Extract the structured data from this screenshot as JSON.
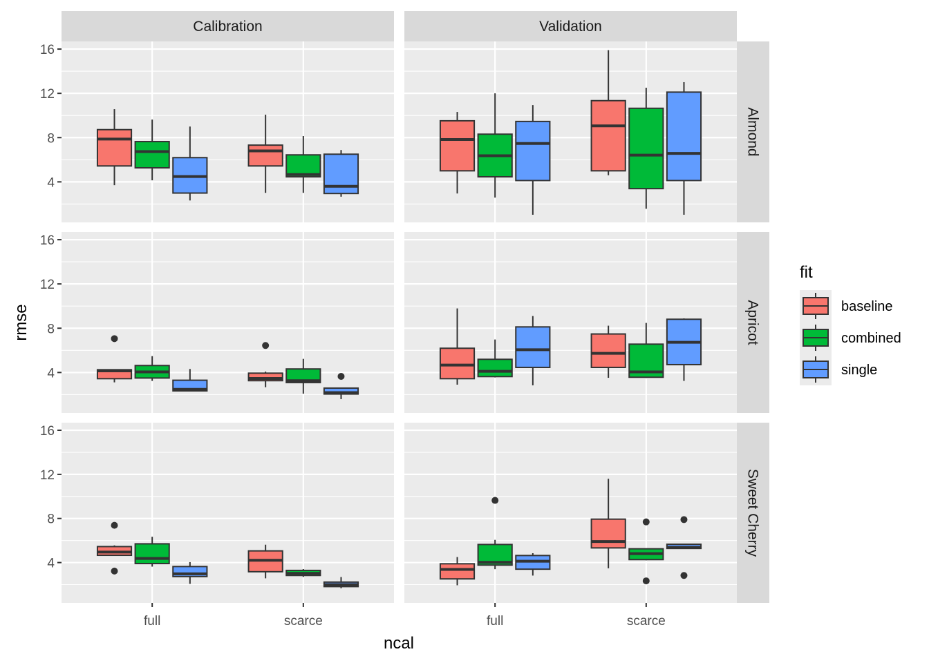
{
  "chart_data": {
    "type": "boxplot",
    "xlabel": "ncal",
    "ylabel": "rmse",
    "ylim": [
      0.34,
      16.69
    ],
    "yticks": [
      4,
      8,
      12,
      16
    ],
    "yminor": [
      2,
      6,
      10,
      14
    ],
    "grid": true,
    "categories": [
      "full",
      "scarce"
    ],
    "facet_cols": [
      "Calibration",
      "Validation"
    ],
    "facet_rows": [
      "Almond",
      "Apricot",
      "Sweet Cherry"
    ],
    "legend": {
      "title": "fit",
      "placement": "right",
      "entries": [
        {
          "name": "baseline",
          "color": "#F8766D"
        },
        {
          "name": "combined",
          "color": "#00BA38"
        },
        {
          "name": "single",
          "color": "#619CFF"
        }
      ]
    },
    "panels": [
      {
        "col": "Calibration",
        "row": "Almond",
        "boxes": [
          {
            "ncal": "full",
            "fit": "baseline",
            "whisker_low": 3.7,
            "q1": 5.44,
            "median": 7.87,
            "q3": 8.72,
            "whisker_high": 10.57,
            "outliers": []
          },
          {
            "ncal": "full",
            "fit": "combined",
            "whisker_low": 4.14,
            "q1": 5.27,
            "median": 6.74,
            "q3": 7.64,
            "whisker_high": 9.63,
            "outliers": []
          },
          {
            "ncal": "full",
            "fit": "single",
            "whisker_low": 2.32,
            "q1": 2.99,
            "median": 4.48,
            "q3": 6.19,
            "whisker_high": 9.0,
            "outliers": []
          },
          {
            "ncal": "scarce",
            "fit": "baseline",
            "whisker_low": 3.01,
            "q1": 5.44,
            "median": 6.8,
            "q3": 7.32,
            "whisker_high": 10.07,
            "outliers": []
          },
          {
            "ncal": "scarce",
            "fit": "combined",
            "whisker_low": 3.01,
            "q1": 4.46,
            "median": 4.66,
            "q3": 6.44,
            "whisker_high": 8.14,
            "outliers": []
          },
          {
            "ncal": "scarce",
            "fit": "single",
            "whisker_low": 2.66,
            "q1": 2.95,
            "median": 3.6,
            "q3": 6.5,
            "whisker_high": 6.88,
            "outliers": []
          }
        ]
      },
      {
        "col": "Validation",
        "row": "Almond",
        "boxes": [
          {
            "ncal": "full",
            "fit": "baseline",
            "whisker_low": 2.95,
            "q1": 5.0,
            "median": 7.83,
            "q3": 9.52,
            "whisker_high": 10.32,
            "outliers": []
          },
          {
            "ncal": "full",
            "fit": "combined",
            "whisker_low": 2.58,
            "q1": 4.46,
            "median": 6.36,
            "q3": 8.31,
            "whisker_high": 12.0,
            "outliers": []
          },
          {
            "ncal": "full",
            "fit": "single",
            "whisker_low": 1.03,
            "q1": 4.12,
            "median": 7.47,
            "q3": 9.46,
            "whisker_high": 10.94,
            "outliers": []
          },
          {
            "ncal": "scarce",
            "fit": "baseline",
            "whisker_low": 4.6,
            "q1": 5.0,
            "median": 9.06,
            "q3": 11.34,
            "whisker_high": 15.9,
            "outliers": []
          },
          {
            "ncal": "scarce",
            "fit": "combined",
            "whisker_low": 1.57,
            "q1": 3.39,
            "median": 6.42,
            "q3": 10.65,
            "whisker_high": 12.51,
            "outliers": []
          },
          {
            "ncal": "scarce",
            "fit": "single",
            "whisker_low": 1.03,
            "q1": 4.12,
            "median": 6.57,
            "q3": 12.11,
            "whisker_high": 13.01,
            "outliers": []
          }
        ]
      },
      {
        "col": "Calibration",
        "row": "Apricot",
        "boxes": [
          {
            "ncal": "full",
            "fit": "baseline",
            "whisker_low": 3.11,
            "q1": 3.44,
            "median": 4.15,
            "q3": 4.25,
            "whisker_high": 4.25,
            "outliers": [
              7.06
            ]
          },
          {
            "ncal": "full",
            "fit": "combined",
            "whisker_low": 3.24,
            "q1": 3.5,
            "median": 4.05,
            "q3": 4.63,
            "whisker_high": 5.48,
            "outliers": []
          },
          {
            "ncal": "full",
            "fit": "single",
            "whisker_low": 2.34,
            "q1": 2.34,
            "median": 2.48,
            "q3": 3.3,
            "whisker_high": 4.32,
            "outliers": []
          },
          {
            "ncal": "scarce",
            "fit": "baseline",
            "whisker_low": 2.67,
            "q1": 3.26,
            "median": 3.46,
            "q3": 3.94,
            "whisker_high": 4.08,
            "outliers": [
              6.44
            ]
          },
          {
            "ncal": "scarce",
            "fit": "combined",
            "whisker_low": 2.09,
            "q1": 3.09,
            "median": 3.26,
            "q3": 4.32,
            "whisker_high": 5.23,
            "outliers": []
          },
          {
            "ncal": "scarce",
            "fit": "single",
            "whisker_low": 1.59,
            "q1": 2.05,
            "median": 2.18,
            "q3": 2.59,
            "whisker_high": 2.59,
            "outliers": [
              3.65
            ]
          }
        ]
      },
      {
        "col": "Validation",
        "row": "Apricot",
        "boxes": [
          {
            "ncal": "full",
            "fit": "baseline",
            "whisker_low": 2.9,
            "q1": 3.44,
            "median": 4.67,
            "q3": 6.19,
            "whisker_high": 9.79,
            "outliers": []
          },
          {
            "ncal": "full",
            "fit": "combined",
            "whisker_low": 3.55,
            "q1": 3.63,
            "median": 4.11,
            "q3": 5.19,
            "whisker_high": 6.98,
            "outliers": []
          },
          {
            "ncal": "full",
            "fit": "single",
            "whisker_low": 2.84,
            "q1": 4.46,
            "median": 6.06,
            "q3": 8.12,
            "whisker_high": 9.1,
            "outliers": []
          },
          {
            "ncal": "scarce",
            "fit": "baseline",
            "whisker_low": 3.52,
            "q1": 4.46,
            "median": 5.73,
            "q3": 7.48,
            "whisker_high": 8.23,
            "outliers": []
          },
          {
            "ncal": "scarce",
            "fit": "combined",
            "whisker_low": 3.5,
            "q1": 3.57,
            "median": 4.05,
            "q3": 6.56,
            "whisker_high": 8.48,
            "outliers": []
          },
          {
            "ncal": "scarce",
            "fit": "single",
            "whisker_low": 3.24,
            "q1": 4.71,
            "median": 6.73,
            "q3": 8.81,
            "whisker_high": 8.89,
            "outliers": []
          }
        ]
      },
      {
        "col": "Calibration",
        "row": "Sweet Cherry",
        "boxes": [
          {
            "ncal": "full",
            "fit": "baseline",
            "whisker_low": 4.6,
            "q1": 4.66,
            "median": 4.95,
            "q3": 5.45,
            "whisker_high": 5.56,
            "outliers": [
              7.38,
              3.23
            ]
          },
          {
            "ncal": "full",
            "fit": "combined",
            "whisker_low": 3.63,
            "q1": 3.91,
            "median": 4.37,
            "q3": 5.7,
            "whisker_high": 6.34,
            "outliers": []
          },
          {
            "ncal": "full",
            "fit": "single",
            "whisker_low": 2.07,
            "q1": 2.73,
            "median": 2.98,
            "q3": 3.64,
            "whisker_high": 4.04,
            "outliers": []
          },
          {
            "ncal": "scarce",
            "fit": "baseline",
            "whisker_low": 2.57,
            "q1": 3.17,
            "median": 4.21,
            "q3": 5.06,
            "whisker_high": 5.62,
            "outliers": []
          },
          {
            "ncal": "scarce",
            "fit": "combined",
            "whisker_low": 2.7,
            "q1": 2.83,
            "median": 3.02,
            "q3": 3.29,
            "whisker_high": 3.41,
            "outliers": []
          },
          {
            "ncal": "scarce",
            "fit": "single",
            "whisker_low": 1.67,
            "q1": 1.82,
            "median": 2.0,
            "q3": 2.23,
            "whisker_high": 2.69,
            "outliers": []
          }
        ]
      },
      {
        "col": "Validation",
        "row": "Sweet Cherry",
        "boxes": [
          {
            "ncal": "full",
            "fit": "baseline",
            "whisker_low": 1.94,
            "q1": 2.52,
            "median": 3.38,
            "q3": 3.89,
            "whisker_high": 4.5,
            "outliers": []
          },
          {
            "ncal": "full",
            "fit": "combined",
            "whisker_low": 3.4,
            "q1": 3.77,
            "median": 4.02,
            "q3": 5.64,
            "whisker_high": 6.06,
            "outliers": [
              9.64
            ]
          },
          {
            "ncal": "full",
            "fit": "single",
            "whisker_low": 2.82,
            "q1": 3.4,
            "median": 4.12,
            "q3": 4.64,
            "whisker_high": 4.85,
            "outliers": []
          },
          {
            "ncal": "scarce",
            "fit": "baseline",
            "whisker_low": 3.48,
            "q1": 5.33,
            "median": 5.91,
            "q3": 7.94,
            "whisker_high": 11.6,
            "outliers": []
          },
          {
            "ncal": "scarce",
            "fit": "combined",
            "whisker_low": 4.2,
            "q1": 4.27,
            "median": 4.81,
            "q3": 5.25,
            "whisker_high": 5.25,
            "outliers": [
              7.69,
              2.34
            ]
          },
          {
            "ncal": "scarce",
            "fit": "single",
            "whisker_low": 5.28,
            "q1": 5.28,
            "median": 5.38,
            "q3": 5.66,
            "whisker_high": 5.66,
            "outliers": [
              7.9,
              2.83
            ]
          }
        ]
      }
    ]
  }
}
